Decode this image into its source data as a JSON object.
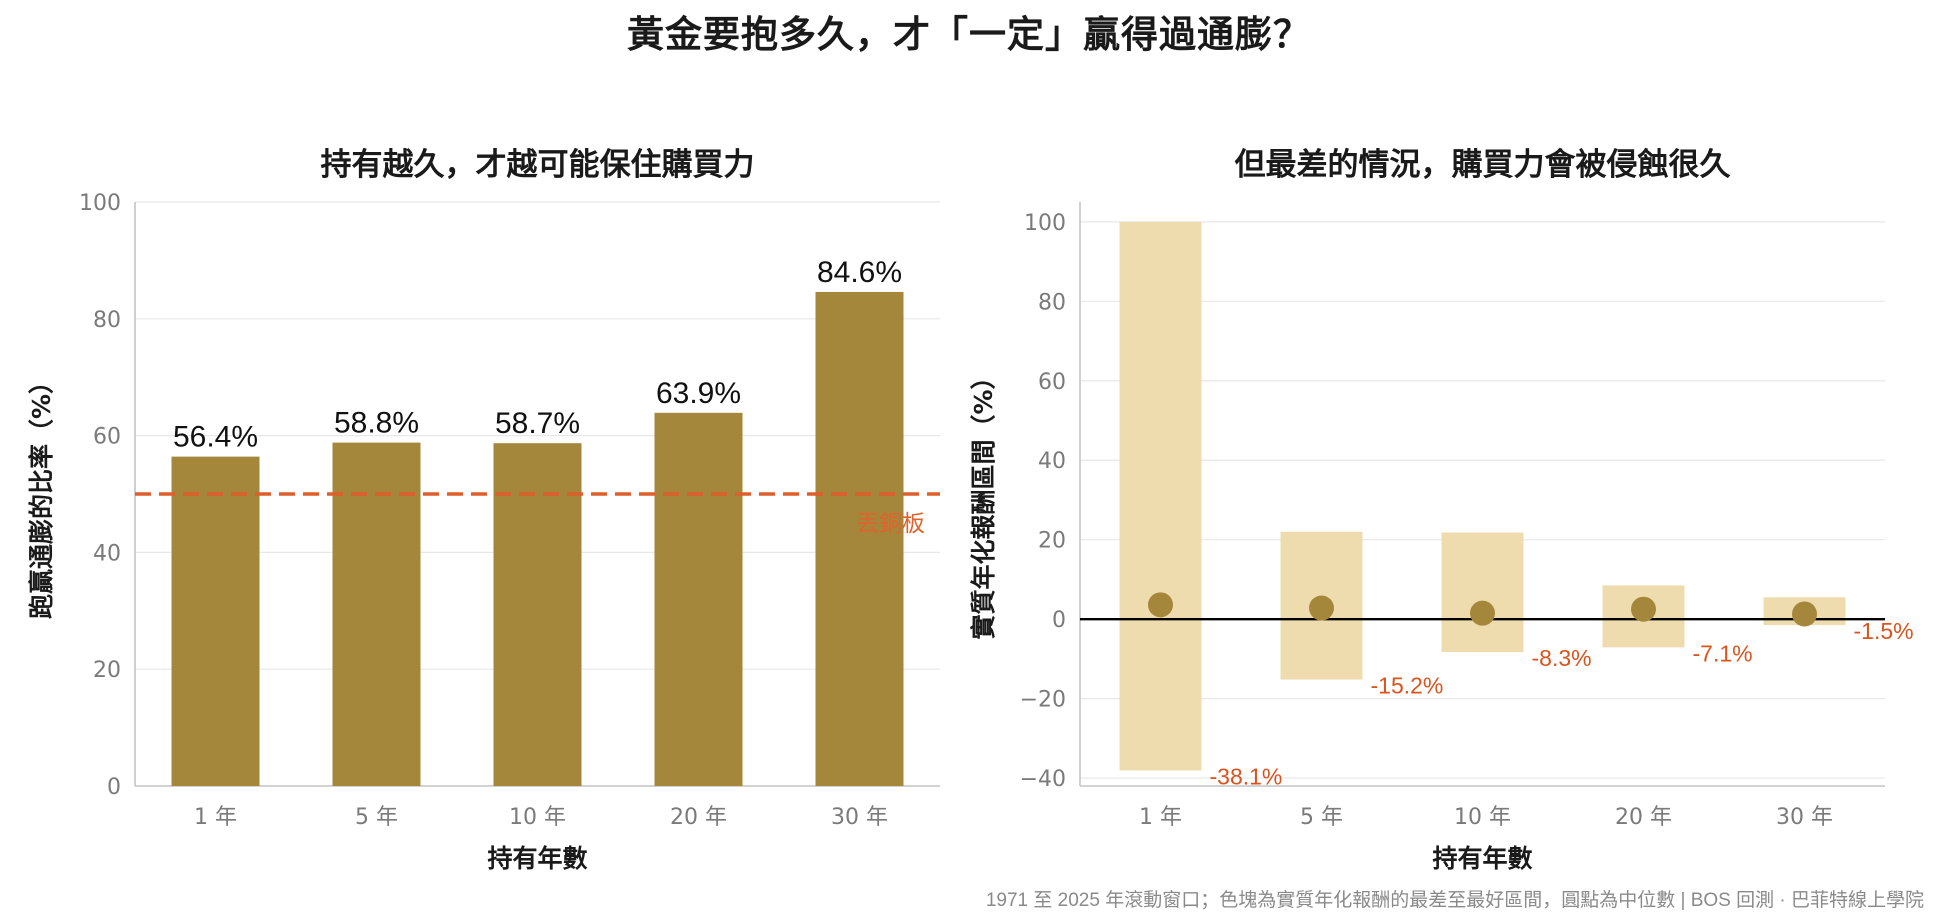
{
  "title": "黃金要抱多久，才「一定」贏得過通膨？",
  "footer": "1971 至 2025 年滾動窗口；色塊為實質年化報酬的最差至最好區間，圓點為中位數 | BOS 回測 · 巴菲特線上學院",
  "colors": {
    "bar": "#a5873b",
    "range": "#eedcae",
    "median": "#a5873b",
    "reference": "#dd5f2c",
    "min_label": "#d9541e"
  },
  "chart_data": [
    {
      "type": "bar",
      "title": "持有越久，才越可能保住購買力",
      "xlabel": "持有年數",
      "ylabel": "跑贏通膨的比率（%）",
      "categories": [
        "1 年",
        "5 年",
        "10 年",
        "20 年",
        "30 年"
      ],
      "values": [
        56.4,
        58.8,
        58.7,
        63.9,
        84.6
      ],
      "value_labels": [
        "56.4%",
        "58.8%",
        "58.7%",
        "63.9%",
        "84.6%"
      ],
      "ylim": [
        0,
        100
      ],
      "yticks": [
        "0",
        "20",
        "40",
        "60",
        "80",
        "100"
      ],
      "reference_line": {
        "value": 50,
        "label": "丟銅板",
        "style": "dashed"
      },
      "grid": "horizontal"
    },
    {
      "type": "range",
      "title": "但最差的情況，購買力會被侵蝕很久",
      "xlabel": "持有年數",
      "ylabel": "實質年化報酬區間（%）",
      "categories": [
        "1 年",
        "5 年",
        "10 年",
        "20 年",
        "30 年"
      ],
      "min": [
        -38.1,
        -15.2,
        -8.3,
        -7.1,
        -1.5
      ],
      "max": [
        100,
        22,
        21.8,
        8.5,
        5.5
      ],
      "median": [
        3.6,
        2.8,
        1.5,
        2.5,
        1.3
      ],
      "min_labels": [
        "-38.1%",
        "-15.2%",
        "-8.3%",
        "-7.1%",
        "-1.5%"
      ],
      "ylim": [
        -42,
        105
      ],
      "yticks": [
        "−40",
        "−20",
        "0",
        "20",
        "40",
        "60",
        "80",
        "100"
      ],
      "zero_line": true,
      "grid": "horizontal"
    }
  ]
}
